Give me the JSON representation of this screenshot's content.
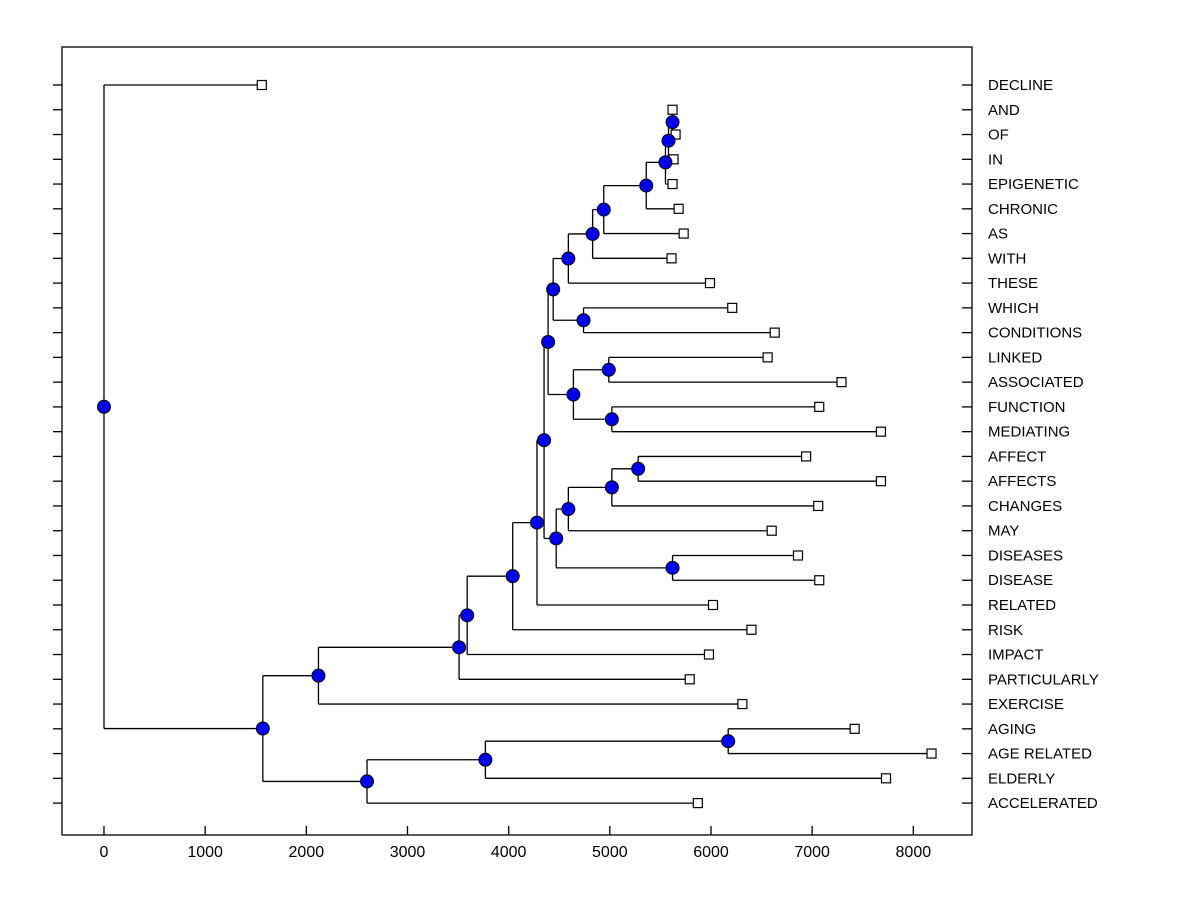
{
  "figure": {
    "background": "#ffffff",
    "axes_border_color": "#000000",
    "branch_line_color": "#000000",
    "leaf_marker": {
      "shape": "square",
      "fill": "#ffffff",
      "stroke": "#000000",
      "size": 9
    },
    "internal_node_marker": {
      "shape": "circle",
      "fill": "#0000e8",
      "stroke": "#000000",
      "diameter": 13
    }
  },
  "chart_data": {
    "type": "dendrogram",
    "title": "",
    "xlabel": "",
    "ylabel": "",
    "orientation": "horizontal-root-left",
    "grid": false,
    "legend": "none",
    "xlim": [
      -415,
      8580
    ],
    "x_ticks": [
      0,
      1000,
      2000,
      3000,
      4000,
      5000,
      6000,
      7000,
      8000
    ],
    "leaf_labels": [
      "DECLINE",
      "AND",
      "OF",
      "IN",
      "EPIGENETIC",
      "CHRONIC",
      "AS",
      "WITH",
      "THESE",
      "WHICH",
      "CONDITIONS",
      "LINKED",
      "ASSOCIATED",
      "FUNCTION",
      "MEDIATING",
      "AFFECT",
      "AFFECTS",
      "CHANGES",
      "MAY",
      "DISEASES",
      "DISEASE",
      "RELATED",
      "RISK",
      "IMPACT",
      "PARTICULARLY",
      "EXERCISE",
      "AGING",
      "AGE RELATED",
      "ELDERLY",
      "ACCELERATED"
    ],
    "leaf_values": [
      1560,
      5620,
      5650,
      5630,
      5620,
      5680,
      5730,
      5610,
      5990,
      6210,
      6630,
      6560,
      7290,
      7070,
      7680,
      6940,
      7680,
      7060,
      6600,
      6860,
      7070,
      6020,
      6400,
      5980,
      5790,
      6310,
      7420,
      8180,
      7730,
      5870
    ],
    "tree": {
      "v": 0,
      "c": [
        {
          "l": "DECLINE",
          "v": 1560
        },
        {
          "v": 1570,
          "c": [
            {
              "v": 2120,
              "c": [
                {
                  "v": 3510,
                  "c": [
                    {
                      "v": 3590,
                      "c": [
                        {
                          "v": 4040,
                          "c": [
                            {
                              "v": 4280,
                              "c": [
                                {
                                  "v": 4350,
                                  "c": [
                                    {
                                      "v": 4390,
                                      "c": [
                                        {
                                          "v": 4440,
                                          "c": [
                                            {
                                              "v": 4590,
                                              "c": [
                                                {
                                                  "v": 4830,
                                                  "c": [
                                                    {
                                                      "v": 4940,
                                                      "c": [
                                                        {
                                                          "v": 5360,
                                                          "c": [
                                                            {
                                                              "v": 5550,
                                                              "c": [
                                                                {
                                                                  "v": 5580,
                                                                  "c": [
                                                                    {
                                                                      "v": 5620,
                                                                      "c": [
                                                                        {
                                                                          "l": "AND",
                                                                          "v": 5620
                                                                        },
                                                                        {
                                                                          "l": "OF",
                                                                          "v": 5650
                                                                        }
                                                                      ]
                                                                    },
                                                                    {
                                                                      "l": "IN",
                                                                      "v": 5630
                                                                    }
                                                                  ]
                                                                },
                                                                {
                                                                  "l": "EPIGENETIC",
                                                                  "v": 5620
                                                                }
                                                              ]
                                                            },
                                                            {
                                                              "l": "CHRONIC",
                                                              "v": 5680
                                                            }
                                                          ]
                                                        },
                                                        {
                                                          "l": "AS",
                                                          "v": 5730
                                                        }
                                                      ]
                                                    },
                                                    {
                                                      "l": "WITH",
                                                      "v": 5610
                                                    }
                                                  ]
                                                },
                                                {
                                                  "l": "THESE",
                                                  "v": 5990
                                                }
                                              ]
                                            },
                                            {
                                              "v": 4740,
                                              "c": [
                                                {
                                                  "l": "WHICH",
                                                  "v": 6210
                                                },
                                                {
                                                  "l": "CONDITIONS",
                                                  "v": 6630
                                                }
                                              ]
                                            }
                                          ]
                                        },
                                        {
                                          "v": 4640,
                                          "c": [
                                            {
                                              "v": 4990,
                                              "c": [
                                                {
                                                  "l": "LINKED",
                                                  "v": 6560
                                                },
                                                {
                                                  "l": "ASSOCIATED",
                                                  "v": 7290
                                                }
                                              ]
                                            },
                                            {
                                              "v": 5020,
                                              "c": [
                                                {
                                                  "l": "FUNCTION",
                                                  "v": 7070
                                                },
                                                {
                                                  "l": "MEDIATING",
                                                  "v": 7680
                                                }
                                              ]
                                            }
                                          ]
                                        }
                                      ]
                                    },
                                    {
                                      "v": 4470,
                                      "c": [
                                        {
                                          "v": 4590,
                                          "c": [
                                            {
                                              "v": 5020,
                                              "c": [
                                                {
                                                  "v": 5280,
                                                  "c": [
                                                    {
                                                      "l": "AFFECT",
                                                      "v": 6940
                                                    },
                                                    {
                                                      "l": "AFFECTS",
                                                      "v": 7680
                                                    }
                                                  ]
                                                },
                                                {
                                                  "l": "CHANGES",
                                                  "v": 7060
                                                }
                                              ]
                                            },
                                            {
                                              "l": "MAY",
                                              "v": 6600
                                            }
                                          ]
                                        },
                                        {
                                          "v": 5620,
                                          "c": [
                                            {
                                              "l": "DISEASES",
                                              "v": 6860
                                            },
                                            {
                                              "l": "DISEASE",
                                              "v": 7070
                                            }
                                          ]
                                        }
                                      ]
                                    }
                                  ]
                                },
                                {
                                  "l": "RELATED",
                                  "v": 6020
                                }
                              ]
                            },
                            {
                              "l": "RISK",
                              "v": 6400
                            }
                          ]
                        },
                        {
                          "l": "IMPACT",
                          "v": 5980
                        }
                      ]
                    },
                    {
                      "l": "PARTICULARLY",
                      "v": 5790
                    }
                  ]
                },
                {
                  "l": "EXERCISE",
                  "v": 6310
                }
              ]
            },
            {
              "v": 2600,
              "c": [
                {
                  "v": 3770,
                  "c": [
                    {
                      "v": 6170,
                      "c": [
                        {
                          "l": "AGING",
                          "v": 7420
                        },
                        {
                          "l": "AGE RELATED",
                          "v": 8180
                        }
                      ]
                    },
                    {
                      "l": "ELDERLY",
                      "v": 7730
                    }
                  ]
                },
                {
                  "l": "ACCELERATED",
                  "v": 5870
                }
              ]
            }
          ]
        }
      ]
    }
  }
}
